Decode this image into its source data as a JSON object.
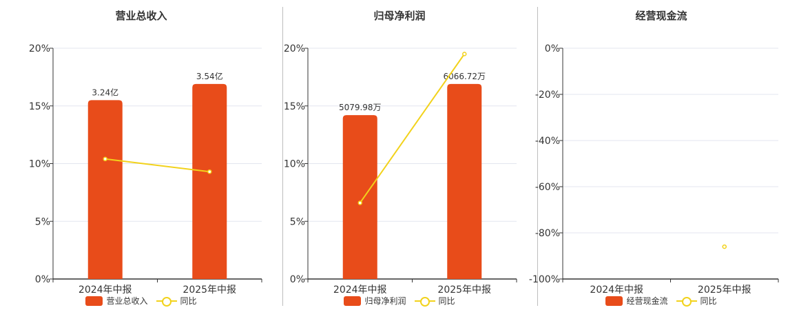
{
  "colors": {
    "bar": "#E84C1A",
    "line": "#F2D21B",
    "grid": "#E3E6EF",
    "axis": "#333333"
  },
  "chart_data": [
    {
      "type": "bar",
      "title": "营业总收入",
      "categories": [
        "2024年中报",
        "2025年中报"
      ],
      "ylim": [
        0,
        20
      ],
      "yticks": [
        "0%",
        "5%",
        "10%",
        "15%",
        "20%"
      ],
      "series": [
        {
          "name": "营业总收入",
          "type": "bar",
          "values": [
            15.5,
            16.9
          ],
          "labels": [
            "3.24亿",
            "3.54亿"
          ]
        },
        {
          "name": "同比",
          "type": "line",
          "values": [
            10.4,
            9.3
          ]
        }
      ],
      "legend": "bottom-center",
      "grid": true
    },
    {
      "type": "bar",
      "title": "归母净利润",
      "categories": [
        "2024年中报",
        "2025年中报"
      ],
      "ylim": [
        0,
        20
      ],
      "yticks": [
        "0%",
        "5%",
        "10%",
        "15%",
        "20%"
      ],
      "series": [
        {
          "name": "归母净利润",
          "type": "bar",
          "values": [
            14.2,
            16.9
          ],
          "labels": [
            "5079.98万",
            "6066.72万"
          ]
        },
        {
          "name": "同比",
          "type": "line",
          "values": [
            6.6,
            19.5
          ]
        }
      ],
      "legend": "bottom-center",
      "grid": true
    },
    {
      "type": "bar",
      "title": "经营现金流",
      "categories": [
        "2024年中报",
        "2025年中报"
      ],
      "ylim": [
        -100,
        0
      ],
      "yticks": [
        "-100%",
        "-80%",
        "-60%",
        "-40%",
        "-20%",
        "0%"
      ],
      "series": [
        {
          "name": "经营现金流",
          "type": "bar",
          "values": [
            null,
            null
          ],
          "labels": [
            "",
            ""
          ]
        },
        {
          "name": "同比",
          "type": "line",
          "values": [
            null,
            -86
          ]
        }
      ],
      "legend": "bottom-center",
      "grid": true
    }
  ]
}
